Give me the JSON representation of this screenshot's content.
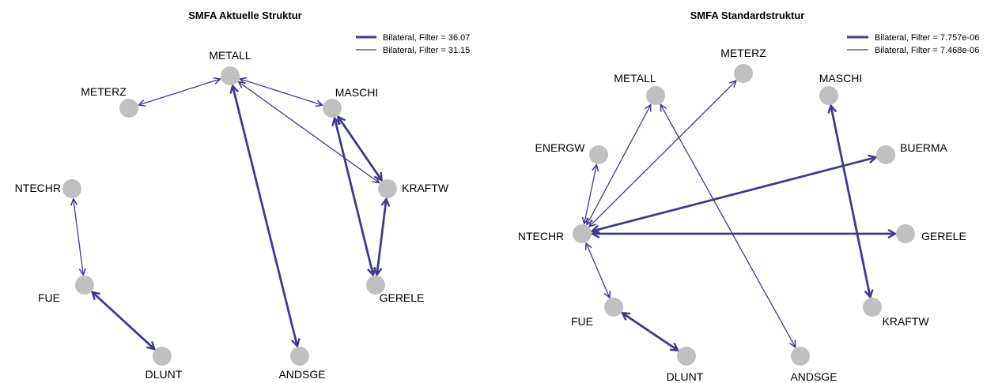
{
  "colors": {
    "edge": "#3f3a8c",
    "node": "#c0c0c0",
    "text": "#000000"
  },
  "panels": [
    {
      "title": "SMFA Aktuelle Struktur",
      "legend": [
        {
          "label": "Bilateral, Filter = 36.07",
          "style": "thick"
        },
        {
          "label": "Bilateral, Filter = 31.15",
          "style": "thin"
        }
      ],
      "nodes": [
        {
          "id": "METALL",
          "label": "METALL"
        },
        {
          "id": "METERZ",
          "label": "METERZ"
        },
        {
          "id": "MASCHI",
          "label": "MASCHI"
        },
        {
          "id": "KRAFTW",
          "label": "KRAFTW"
        },
        {
          "id": "NTECHR",
          "label": "NTECHR"
        },
        {
          "id": "FUE",
          "label": "FUE"
        },
        {
          "id": "GERELE",
          "label": "GERELE"
        },
        {
          "id": "DLUNT",
          "label": "DLUNT"
        },
        {
          "id": "ANDSGE",
          "label": "ANDSGE"
        }
      ],
      "edges": [
        {
          "a": "METALL",
          "b": "METERZ",
          "style": "thin"
        },
        {
          "a": "METALL",
          "b": "MASCHI",
          "style": "thin"
        },
        {
          "a": "METALL",
          "b": "KRAFTW",
          "style": "thin"
        },
        {
          "a": "METALL",
          "b": "ANDSGE",
          "style": "thick"
        },
        {
          "a": "MASCHI",
          "b": "KRAFTW",
          "style": "thick"
        },
        {
          "a": "MASCHI",
          "b": "GERELE",
          "style": "thick"
        },
        {
          "a": "KRAFTW",
          "b": "GERELE",
          "style": "thick"
        },
        {
          "a": "NTECHR",
          "b": "FUE",
          "style": "thin"
        },
        {
          "a": "FUE",
          "b": "DLUNT",
          "style": "thick"
        }
      ]
    },
    {
      "title": "SMFA Standardstruktur",
      "legend": [
        {
          "label": "Bilateral, Filter = 7.757e-06",
          "style": "thick"
        },
        {
          "label": "Bilateral, Filter = 7.468e-06",
          "style": "thin"
        }
      ],
      "nodes": [
        {
          "id": "METERZ",
          "label": "METERZ"
        },
        {
          "id": "METALL",
          "label": "METALL"
        },
        {
          "id": "MASCHI",
          "label": "MASCHI"
        },
        {
          "id": "ENERGW",
          "label": "ENERGW"
        },
        {
          "id": "BUERMA",
          "label": "BUERMA"
        },
        {
          "id": "NTECHR",
          "label": "NTECHR"
        },
        {
          "id": "GERELE",
          "label": "GERELE"
        },
        {
          "id": "FUE",
          "label": "FUE"
        },
        {
          "id": "KRAFTW",
          "label": "KRAFTW"
        },
        {
          "id": "DLUNT",
          "label": "DLUNT"
        },
        {
          "id": "ANDSGE",
          "label": "ANDSGE"
        }
      ],
      "edges": [
        {
          "a": "NTECHR",
          "b": "METALL",
          "style": "thin"
        },
        {
          "a": "NTECHR",
          "b": "METERZ",
          "style": "thin"
        },
        {
          "a": "NTECHR",
          "b": "ENERGW",
          "style": "thin"
        },
        {
          "a": "NTECHR",
          "b": "BUERMA",
          "style": "thick"
        },
        {
          "a": "NTECHR",
          "b": "GERELE",
          "style": "thick"
        },
        {
          "a": "NTECHR",
          "b": "FUE",
          "style": "thin"
        },
        {
          "a": "METALL",
          "b": "ANDSGE",
          "style": "thin"
        },
        {
          "a": "MASCHI",
          "b": "KRAFTW",
          "style": "thick"
        },
        {
          "a": "FUE",
          "b": "DLUNT",
          "style": "thick"
        }
      ]
    }
  ]
}
